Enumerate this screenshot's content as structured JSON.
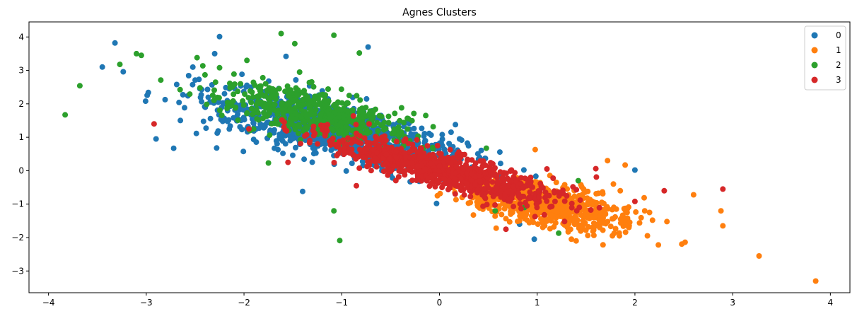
{
  "chart_data": {
    "type": "scatter",
    "title": "Agnes Clusters",
    "xlabel": "",
    "ylabel": "",
    "xlim": [
      -4.2,
      4.2
    ],
    "ylim": [
      -3.65,
      4.45
    ],
    "xticks": [
      -4,
      -3,
      -2,
      -1,
      0,
      1,
      2,
      3,
      4
    ],
    "yticks": [
      -3,
      -2,
      -1,
      0,
      1,
      2,
      3,
      4
    ],
    "grid": false,
    "legend_position": "top-right",
    "series": [
      {
        "name": "0",
        "color": "#1f77b4",
        "approx_count": 900,
        "center": [
          -1.1,
          1.2
        ],
        "spread_along": 0.85,
        "spread_across": 0.32,
        "visible_outliers": [
          [
            -3.32,
            3.82
          ],
          [
            -2.25,
            4.01
          ],
          [
            -2.3,
            3.5
          ],
          [
            -1.57,
            3.42
          ],
          [
            -0.73,
            3.7
          ],
          [
            -3.45,
            3.1
          ],
          [
            -2.9,
            0.95
          ],
          [
            -2.72,
            0.67
          ],
          [
            -1.4,
            -0.62
          ],
          [
            0.97,
            -2.05
          ],
          [
            0.82,
            -1.6
          ],
          [
            -0.03,
            -0.98
          ],
          [
            2.0,
            0.02
          ],
          [
            1.32,
            -0.82
          ],
          [
            -2.28,
            0.68
          ]
        ]
      },
      {
        "name": "1",
        "color": "#ff7f0e",
        "approx_count": 700,
        "center": [
          1.1,
          -1.05
        ],
        "spread_along": 0.5,
        "spread_across": 0.25,
        "visible_outliers": [
          [
            3.85,
            -3.3
          ],
          [
            3.27,
            -2.55
          ],
          [
            2.24,
            -2.22
          ],
          [
            2.9,
            -1.65
          ],
          [
            2.88,
            -1.2
          ],
          [
            2.6,
            -0.72
          ],
          [
            2.18,
            -1.48
          ],
          [
            2.1,
            -1.2
          ],
          [
            1.92,
            -1.25
          ],
          [
            1.72,
            0.3
          ],
          [
            1.9,
            0.17
          ],
          [
            1.78,
            -0.4
          ],
          [
            1.85,
            -0.6
          ],
          [
            0.98,
            0.63
          ],
          [
            1.35,
            -2.05
          ],
          [
            1.45,
            -1.68
          ]
        ]
      },
      {
        "name": "2",
        "color": "#2ca02c",
        "approx_count": 550,
        "center": [
          -1.25,
          1.7
        ],
        "spread_along": 0.6,
        "spread_across": 0.28,
        "visible_outliers": [
          [
            -3.83,
            1.67
          ],
          [
            -3.68,
            2.54
          ],
          [
            -3.1,
            3.5
          ],
          [
            -3.05,
            3.45
          ],
          [
            -1.62,
            4.1
          ],
          [
            -1.08,
            4.05
          ],
          [
            -1.48,
            3.8
          ],
          [
            -0.82,
            3.52
          ],
          [
            -1.97,
            3.3
          ],
          [
            -2.48,
            3.38
          ],
          [
            -2.25,
            3.08
          ],
          [
            -3.27,
            3.18
          ],
          [
            -1.02,
            -2.09
          ],
          [
            -1.08,
            -1.2
          ],
          [
            1.22,
            -1.87
          ],
          [
            0.57,
            -1.2
          ],
          [
            0.87,
            -1.1
          ],
          [
            -1.75,
            0.23
          ],
          [
            1.42,
            -0.3
          ]
        ]
      },
      {
        "name": "3",
        "color": "#d62728",
        "approx_count": 900,
        "center": [
          0.0,
          0.05
        ],
        "spread_along": 0.72,
        "spread_across": 0.2,
        "visible_outliers": [
          [
            -2.92,
            1.4
          ],
          [
            2.3,
            -0.6
          ],
          [
            2.9,
            -0.55
          ],
          [
            2.0,
            -0.92
          ],
          [
            1.6,
            0.06
          ],
          [
            1.28,
            -1.52
          ],
          [
            0.68,
            -1.75
          ],
          [
            0.93,
            -0.82
          ],
          [
            1.1,
            0.05
          ],
          [
            -1.55,
            0.25
          ],
          [
            -0.72,
            1.4
          ],
          [
            -1.95,
            1.25
          ],
          [
            -1.05,
            0.45
          ],
          [
            -0.85,
            -0.45
          ],
          [
            0.1,
            -0.3
          ]
        ]
      }
    ]
  }
}
